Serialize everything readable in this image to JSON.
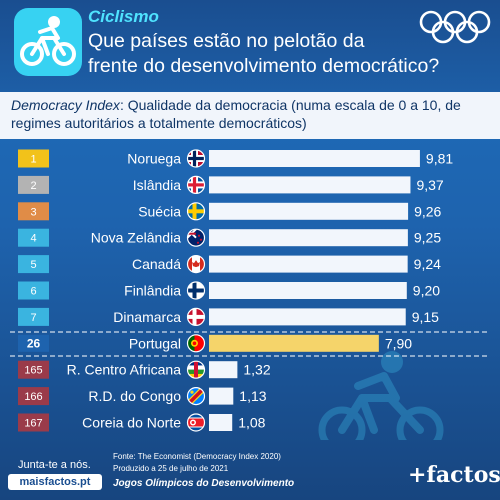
{
  "header": {
    "sport": "Ciclismo",
    "title_line1": "Que países estão no pelotão da",
    "title_line2": "frente do desenvolvimento democrático?"
  },
  "subtitle": {
    "index_name": "Democracy Index",
    "text": ": Qualidade da democracia (numa escala de 0 a 10, de regimes autoritários a totalmente democráticos)"
  },
  "colors": {
    "background": "#1e63ae",
    "bar": "#f2f6fc",
    "highlight_bar": "#f5d46a",
    "gold": "#f2c21a",
    "silver": "#b3b3b3",
    "bronze": "#e08c47",
    "top_rank": "#3ab4e0",
    "bottom_rank": "#9a3b4a",
    "accent": "#4fe3ff"
  },
  "chart_data": {
    "type": "bar",
    "orientation": "horizontal",
    "xlim": [
      0,
      10
    ],
    "categories": [
      "Noruega",
      "Islândia",
      "Suécia",
      "Nova Zelândia",
      "Canadá",
      "Finlândia",
      "Dinamarca",
      "Portugal",
      "R. Centro Africana",
      "R.D. do Congo",
      "Coreia do Norte"
    ],
    "ranks": [
      "1",
      "2",
      "3",
      "4",
      "5",
      "6",
      "7",
      "26",
      "165",
      "166",
      "167"
    ],
    "values": [
      9.81,
      9.37,
      9.26,
      9.25,
      9.24,
      9.2,
      9.15,
      7.9,
      1.32,
      1.13,
      1.08
    ],
    "value_labels": [
      "9,81",
      "9,37",
      "9,26",
      "9,25",
      "9,24",
      "9,20",
      "9,15",
      "7,90",
      "1,32",
      "1,13",
      "1,08"
    ],
    "flags": [
      "flag-norway",
      "flag-iceland",
      "flag-sweden",
      "flag-new-zealand",
      "flag-canada",
      "flag-finland",
      "flag-denmark",
      "flag-portugal",
      "flag-central-african-republic",
      "flag-dr-congo",
      "flag-north-korea"
    ],
    "highlight": "Portugal",
    "title": "",
    "xlabel": "",
    "ylabel": ""
  },
  "footer": {
    "join": "Junta-te a nós.",
    "site": "maisfactos.pt",
    "source": "Fonte: The Economist (Democracy Index 2020)",
    "date": "Produzido a 25 de julho de 2021",
    "series": "Jogos Olímpicos do Desenvolvimento",
    "brand": "+factos"
  }
}
